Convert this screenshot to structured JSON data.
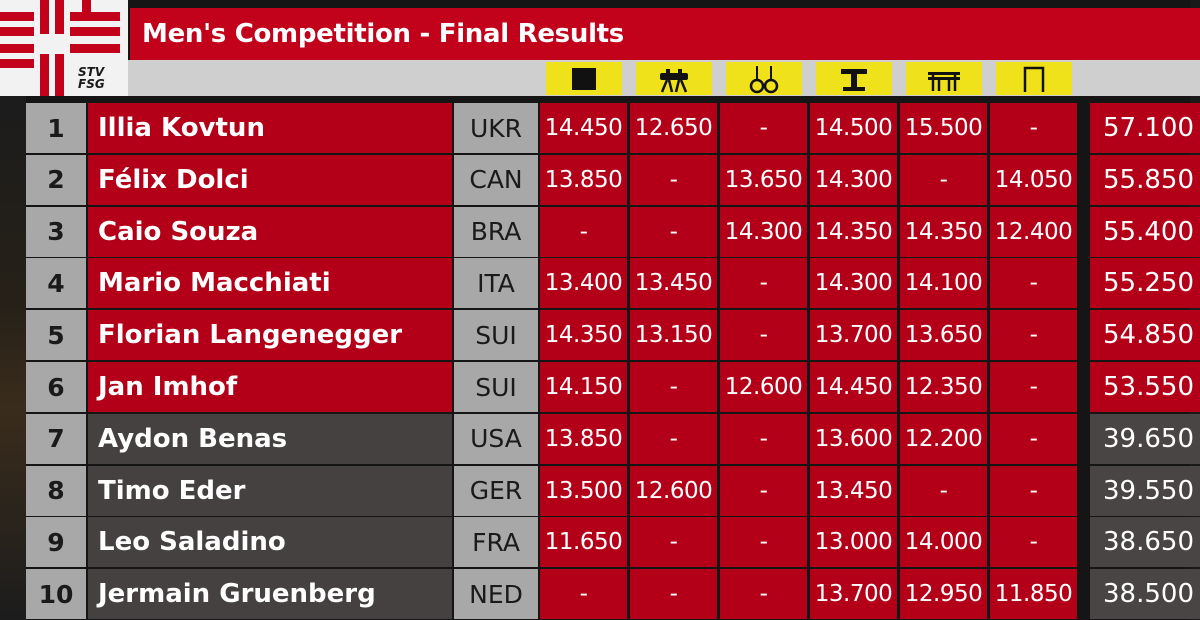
{
  "header": {
    "title": "Men's Competition - Final Results",
    "logo_text_line1": "STV",
    "logo_text_line2": "FSG"
  },
  "apparatus": [
    {
      "icon": "floor-exercise-icon"
    },
    {
      "icon": "pommel-horse-icon"
    },
    {
      "icon": "still-rings-icon"
    },
    {
      "icon": "vault-icon"
    },
    {
      "icon": "parallel-bars-icon"
    },
    {
      "icon": "high-bar-icon"
    }
  ],
  "results": [
    {
      "rank": "1",
      "name": "Illia Kovtun",
      "nation": "UKR",
      "scores": [
        "14.450",
        "12.650",
        "-",
        "14.500",
        "15.500",
        "-"
      ],
      "total": "57.100",
      "status": "top"
    },
    {
      "rank": "2",
      "name": "Félix Dolci",
      "nation": "CAN",
      "scores": [
        "13.850",
        "-",
        "13.650",
        "14.300",
        "-",
        "14.050"
      ],
      "total": "55.850",
      "status": "top"
    },
    {
      "rank": "3",
      "name": "Caio Souza",
      "nation": "BRA",
      "scores": [
        "-",
        "-",
        "14.300",
        "14.350",
        "14.350",
        "12.400"
      ],
      "total": "55.400",
      "status": "top"
    },
    {
      "rank": "4",
      "name": "Mario Macchiati",
      "nation": "ITA",
      "scores": [
        "13.400",
        "13.450",
        "-",
        "14.300",
        "14.100",
        "-"
      ],
      "total": "55.250",
      "status": "top"
    },
    {
      "rank": "5",
      "name": "Florian Langenegger",
      "nation": "SUI",
      "scores": [
        "14.350",
        "13.150",
        "-",
        "13.700",
        "13.650",
        "-"
      ],
      "total": "54.850",
      "status": "top"
    },
    {
      "rank": "6",
      "name": "Jan Imhof",
      "nation": "SUI",
      "scores": [
        "14.150",
        "-",
        "12.600",
        "14.450",
        "12.350",
        "-"
      ],
      "total": "53.550",
      "status": "top"
    },
    {
      "rank": "7",
      "name": "Aydon Benas",
      "nation": "USA",
      "scores": [
        "13.850",
        "-",
        "-",
        "13.600",
        "12.200",
        "-"
      ],
      "total": "39.650",
      "status": "other"
    },
    {
      "rank": "8",
      "name": "Timo Eder",
      "nation": "GER",
      "scores": [
        "13.500",
        "12.600",
        "-",
        "13.450",
        "-",
        "-"
      ],
      "total": "39.550",
      "status": "other"
    },
    {
      "rank": "9",
      "name": "Leo Saladino",
      "nation": "FRA",
      "scores": [
        "11.650",
        "-",
        "-",
        "13.000",
        "14.000",
        "-"
      ],
      "total": "38.650",
      "status": "other"
    },
    {
      "rank": "10",
      "name": "Jermain Gruenberg",
      "nation": "NED",
      "scores": [
        "-",
        "-",
        "-",
        "13.700",
        "12.950",
        "11.850"
      ],
      "total": "38.500",
      "status": "other"
    }
  ],
  "colors": {
    "brand_red": "#c1021a",
    "row_red": "#b30018",
    "row_grey": "#464141",
    "label_grey": "#a8a8a8",
    "icon_yellow": "#f0e21a"
  }
}
